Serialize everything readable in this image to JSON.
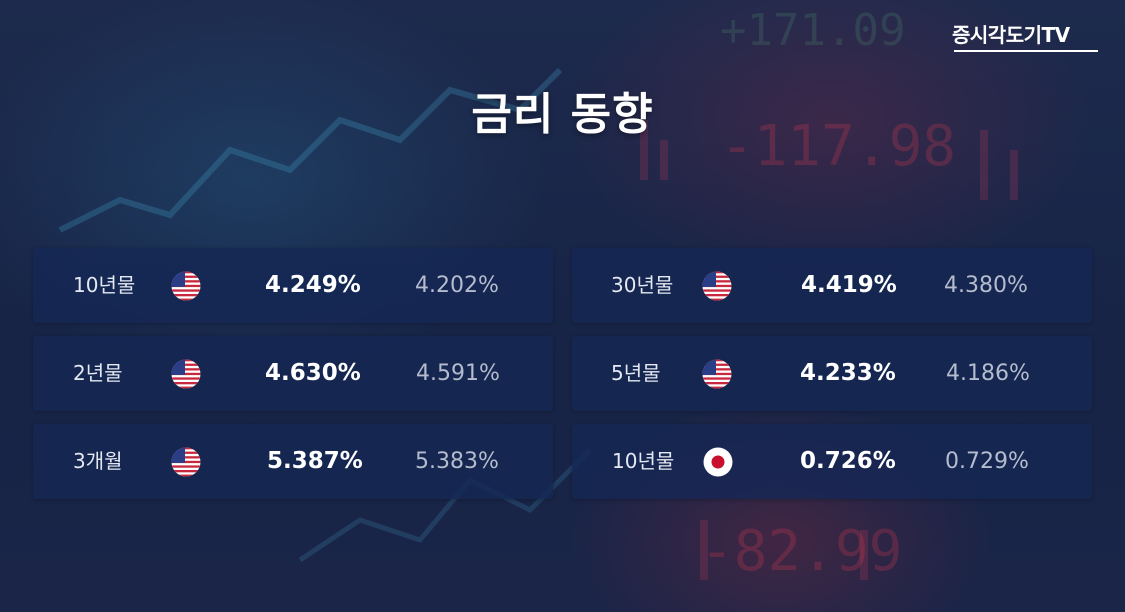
{
  "branding": {
    "logo_text": "증시각도기TV"
  },
  "header": {
    "title": "금리 동향"
  },
  "rates": {
    "left": [
      {
        "label": "10년물",
        "flag_icon": "us-flag-icon",
        "current": "4.249%",
        "previous": "4.202%"
      },
      {
        "label": "2년물",
        "flag_icon": "us-flag-icon",
        "current": "4.630%",
        "previous": "4.591%"
      },
      {
        "label": "3개월",
        "flag_icon": "us-flag-icon",
        "current": "5.387%",
        "previous": "5.383%"
      }
    ],
    "right": [
      {
        "label": "30년물",
        "flag_icon": "us-flag-icon",
        "current": "4.419%",
        "previous": "4.380%"
      },
      {
        "label": "5년물",
        "flag_icon": "us-flag-icon",
        "current": "4.233%",
        "previous": "4.186%"
      },
      {
        "label": "10년물",
        "flag_icon": "jp-flag-icon",
        "current": "0.726%",
        "previous": "0.729%"
      }
    ]
  },
  "colors": {
    "card_bg": "#142654",
    "current_text": "#ffffff",
    "previous_text": "#b4bccd",
    "us_red": "#c8283c",
    "us_blue": "#2a3d86",
    "jp_red": "#c8102e"
  }
}
